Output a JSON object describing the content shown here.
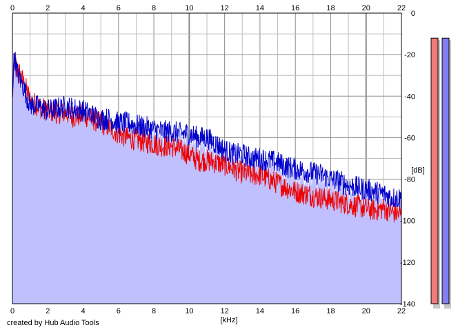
{
  "footer": {
    "credit": "created by Hub Audio Tools"
  },
  "colors": {
    "background": "#ffffff",
    "plot_border": "#000000",
    "grid_minor": "#bdbdbd",
    "grid_major": "#8a8a8a",
    "fill": "#c0c0ff",
    "channel_left": "#ee0000",
    "channel_right": "#0000cc",
    "meter_left_fill": "#ef7b7b",
    "meter_right_fill": "#8080f0",
    "meter_shadow": "#c8c8c8"
  },
  "meters": [
    {
      "name": "left-channel-meter",
      "level_db": -6
    },
    {
      "name": "right-channel-meter",
      "level_db": -6
    }
  ],
  "chart_data": {
    "type": "line",
    "xlabel": "[kHz]",
    "ylabel": "[dB]",
    "xlim": [
      0,
      22
    ],
    "ylim": [
      -140,
      0
    ],
    "x_ticks": [
      "0",
      "2",
      "4",
      "6",
      "8",
      "10",
      "12",
      "14",
      "16",
      "18",
      "20",
      "22"
    ],
    "y_ticks": [
      "0",
      "-20",
      "-40",
      "-60",
      "-80",
      "-100",
      "-120",
      "-140"
    ],
    "grid": true,
    "series": [
      {
        "color": "#ee0000",
        "x": [
          0,
          0.1,
          0.25,
          0.4,
          0.6,
          0.8,
          1.0,
          1.5,
          2.0,
          2.5,
          3.0,
          3.5,
          4.0,
          4.5,
          5.0,
          5.5,
          6.0,
          6.5,
          7.0,
          7.5,
          8.0,
          8.5,
          9.0,
          9.5,
          10.0,
          10.5,
          11.0,
          11.5,
          12.0,
          12.5,
          13.0,
          13.5,
          14.0,
          14.5,
          15.0,
          15.5,
          16.0,
          16.5,
          17.0,
          17.5,
          18.0,
          18.5,
          19.0,
          19.5,
          20.0,
          20.5,
          21.0,
          21.5,
          22.0
        ],
        "y": [
          -42,
          -22,
          -27,
          -29,
          -33,
          -37,
          -42,
          -45,
          -47,
          -48,
          -48,
          -50,
          -49,
          -51,
          -53,
          -55,
          -58,
          -60,
          -61,
          -62,
          -63,
          -64,
          -64,
          -66,
          -68,
          -71,
          -71,
          -72,
          -73,
          -75,
          -77,
          -78,
          -78,
          -80,
          -82,
          -84,
          -86,
          -87,
          -88,
          -89,
          -90,
          -91,
          -92,
          -93,
          -94,
          -95,
          -94,
          -96,
          -97
        ]
      },
      {
        "color": "#0000cc",
        "x": [
          0,
          0.1,
          0.25,
          0.4,
          0.6,
          0.8,
          1.0,
          1.5,
          2.0,
          2.5,
          3.0,
          3.5,
          4.0,
          4.5,
          5.0,
          5.5,
          6.0,
          6.5,
          7.0,
          7.5,
          8.0,
          8.5,
          9.0,
          9.5,
          10.0,
          10.5,
          11.0,
          11.5,
          12.0,
          12.5,
          13.0,
          13.5,
          14.0,
          14.5,
          15.0,
          15.5,
          16.0,
          16.5,
          17.0,
          17.5,
          18.0,
          18.5,
          19.0,
          19.5,
          20.0,
          20.5,
          21.0,
          21.5,
          22.0
        ],
        "y": [
          -38,
          -20,
          -28,
          -31,
          -35,
          -40,
          -44,
          -45,
          -47,
          -46,
          -45,
          -46,
          -47,
          -49,
          -51,
          -51,
          -53,
          -53,
          -54,
          -55,
          -56,
          -57,
          -57,
          -58,
          -58,
          -60,
          -60,
          -63,
          -66,
          -68,
          -68,
          -70,
          -70,
          -71,
          -72,
          -74,
          -75,
          -76,
          -77,
          -78,
          -80,
          -81,
          -83,
          -84,
          -85,
          -86,
          -87,
          -89,
          -89
        ]
      }
    ]
  }
}
